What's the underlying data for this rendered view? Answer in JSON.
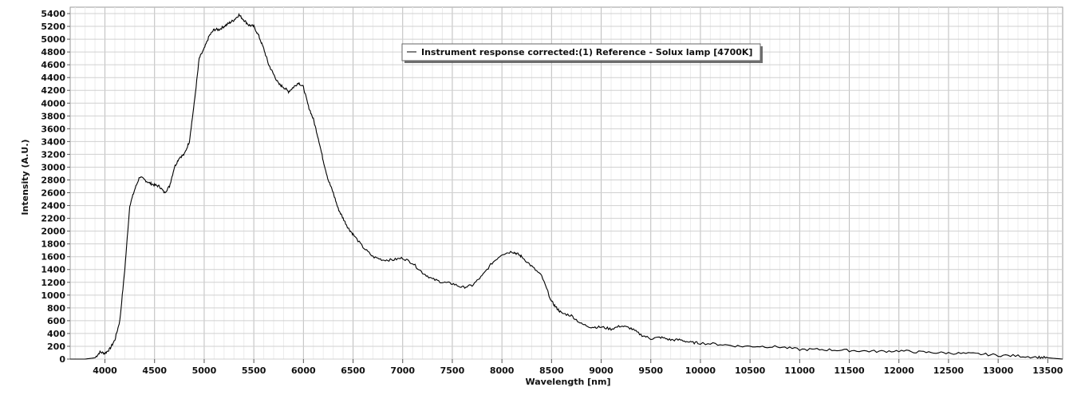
{
  "chart_data": {
    "type": "line",
    "title": "",
    "xlabel": "Wavelength [nm]",
    "ylabel": "Intensity (A.U.)",
    "xlim": [
      3650,
      13650
    ],
    "ylim": [
      0,
      5500
    ],
    "x_ticks": [
      "4000",
      "4500",
      "5000",
      "5500",
      "6000",
      "6500",
      "7000",
      "7500",
      "8000",
      "8500",
      "9000",
      "9500",
      "10000",
      "10500",
      "11000",
      "11500",
      "12000",
      "12500",
      "13000",
      "13500"
    ],
    "y_ticks": [
      "0",
      "200",
      "400",
      "600",
      "800",
      "1000",
      "1200",
      "1400",
      "1600",
      "1800",
      "2000",
      "2200",
      "2400",
      "2600",
      "2800",
      "3000",
      "3200",
      "3400",
      "3600",
      "3800",
      "4000",
      "4200",
      "4400",
      "4600",
      "4800",
      "5000",
      "5200",
      "5400"
    ],
    "grid": true,
    "legend_position": "top-center",
    "series": [
      {
        "name": "Instrument response corrected:(1) Reference - Solux lamp [4700K]",
        "color": "#000000",
        "x": [
          3650,
          3800,
          3900,
          3950,
          4000,
          4050,
          4100,
          4150,
          4200,
          4250,
          4300,
          4350,
          4400,
          4450,
          4500,
          4550,
          4600,
          4650,
          4700,
          4750,
          4800,
          4850,
          4900,
          4950,
          5000,
          5050,
          5100,
          5150,
          5200,
          5250,
          5300,
          5350,
          5400,
          5450,
          5500,
          5550,
          5600,
          5650,
          5700,
          5750,
          5800,
          5850,
          5900,
          5950,
          6000,
          6050,
          6100,
          6150,
          6200,
          6250,
          6300,
          6350,
          6400,
          6450,
          6500,
          6600,
          6700,
          6800,
          6900,
          7000,
          7100,
          7200,
          7300,
          7400,
          7500,
          7600,
          7700,
          7800,
          7900,
          8000,
          8100,
          8150,
          8200,
          8300,
          8400,
          8500,
          8550,
          8600,
          8700,
          8800,
          8900,
          9000,
          9100,
          9200,
          9300,
          9400,
          9500,
          9600,
          9700,
          9800,
          9900,
          10000,
          10200,
          10400,
          10600,
          10800,
          11000,
          11200,
          11400,
          11600,
          11800,
          12000,
          12200,
          12400,
          12600,
          12800,
          13000,
          13200,
          13400,
          13500,
          13650
        ],
        "values": [
          0,
          0,
          20,
          110,
          90,
          160,
          300,
          600,
          1400,
          2400,
          2650,
          2850,
          2800,
          2750,
          2720,
          2700,
          2600,
          2700,
          3000,
          3150,
          3200,
          3400,
          4000,
          4700,
          4850,
          5050,
          5150,
          5150,
          5200,
          5250,
          5300,
          5380,
          5300,
          5220,
          5200,
          5050,
          4850,
          4600,
          4450,
          4300,
          4250,
          4180,
          4250,
          4320,
          4250,
          3950,
          3750,
          3450,
          3100,
          2800,
          2600,
          2350,
          2200,
          2050,
          1950,
          1750,
          1600,
          1550,
          1550,
          1580,
          1500,
          1350,
          1250,
          1200,
          1180,
          1120,
          1150,
          1300,
          1500,
          1640,
          1680,
          1650,
          1600,
          1450,
          1300,
          900,
          800,
          720,
          680,
          550,
          500,
          500,
          470,
          520,
          480,
          380,
          320,
          340,
          300,
          300,
          260,
          250,
          230,
          200,
          200,
          190,
          150,
          150,
          140,
          130,
          120,
          130,
          110,
          100,
          90,
          80,
          60,
          50,
          30,
          20,
          0
        ]
      }
    ]
  }
}
